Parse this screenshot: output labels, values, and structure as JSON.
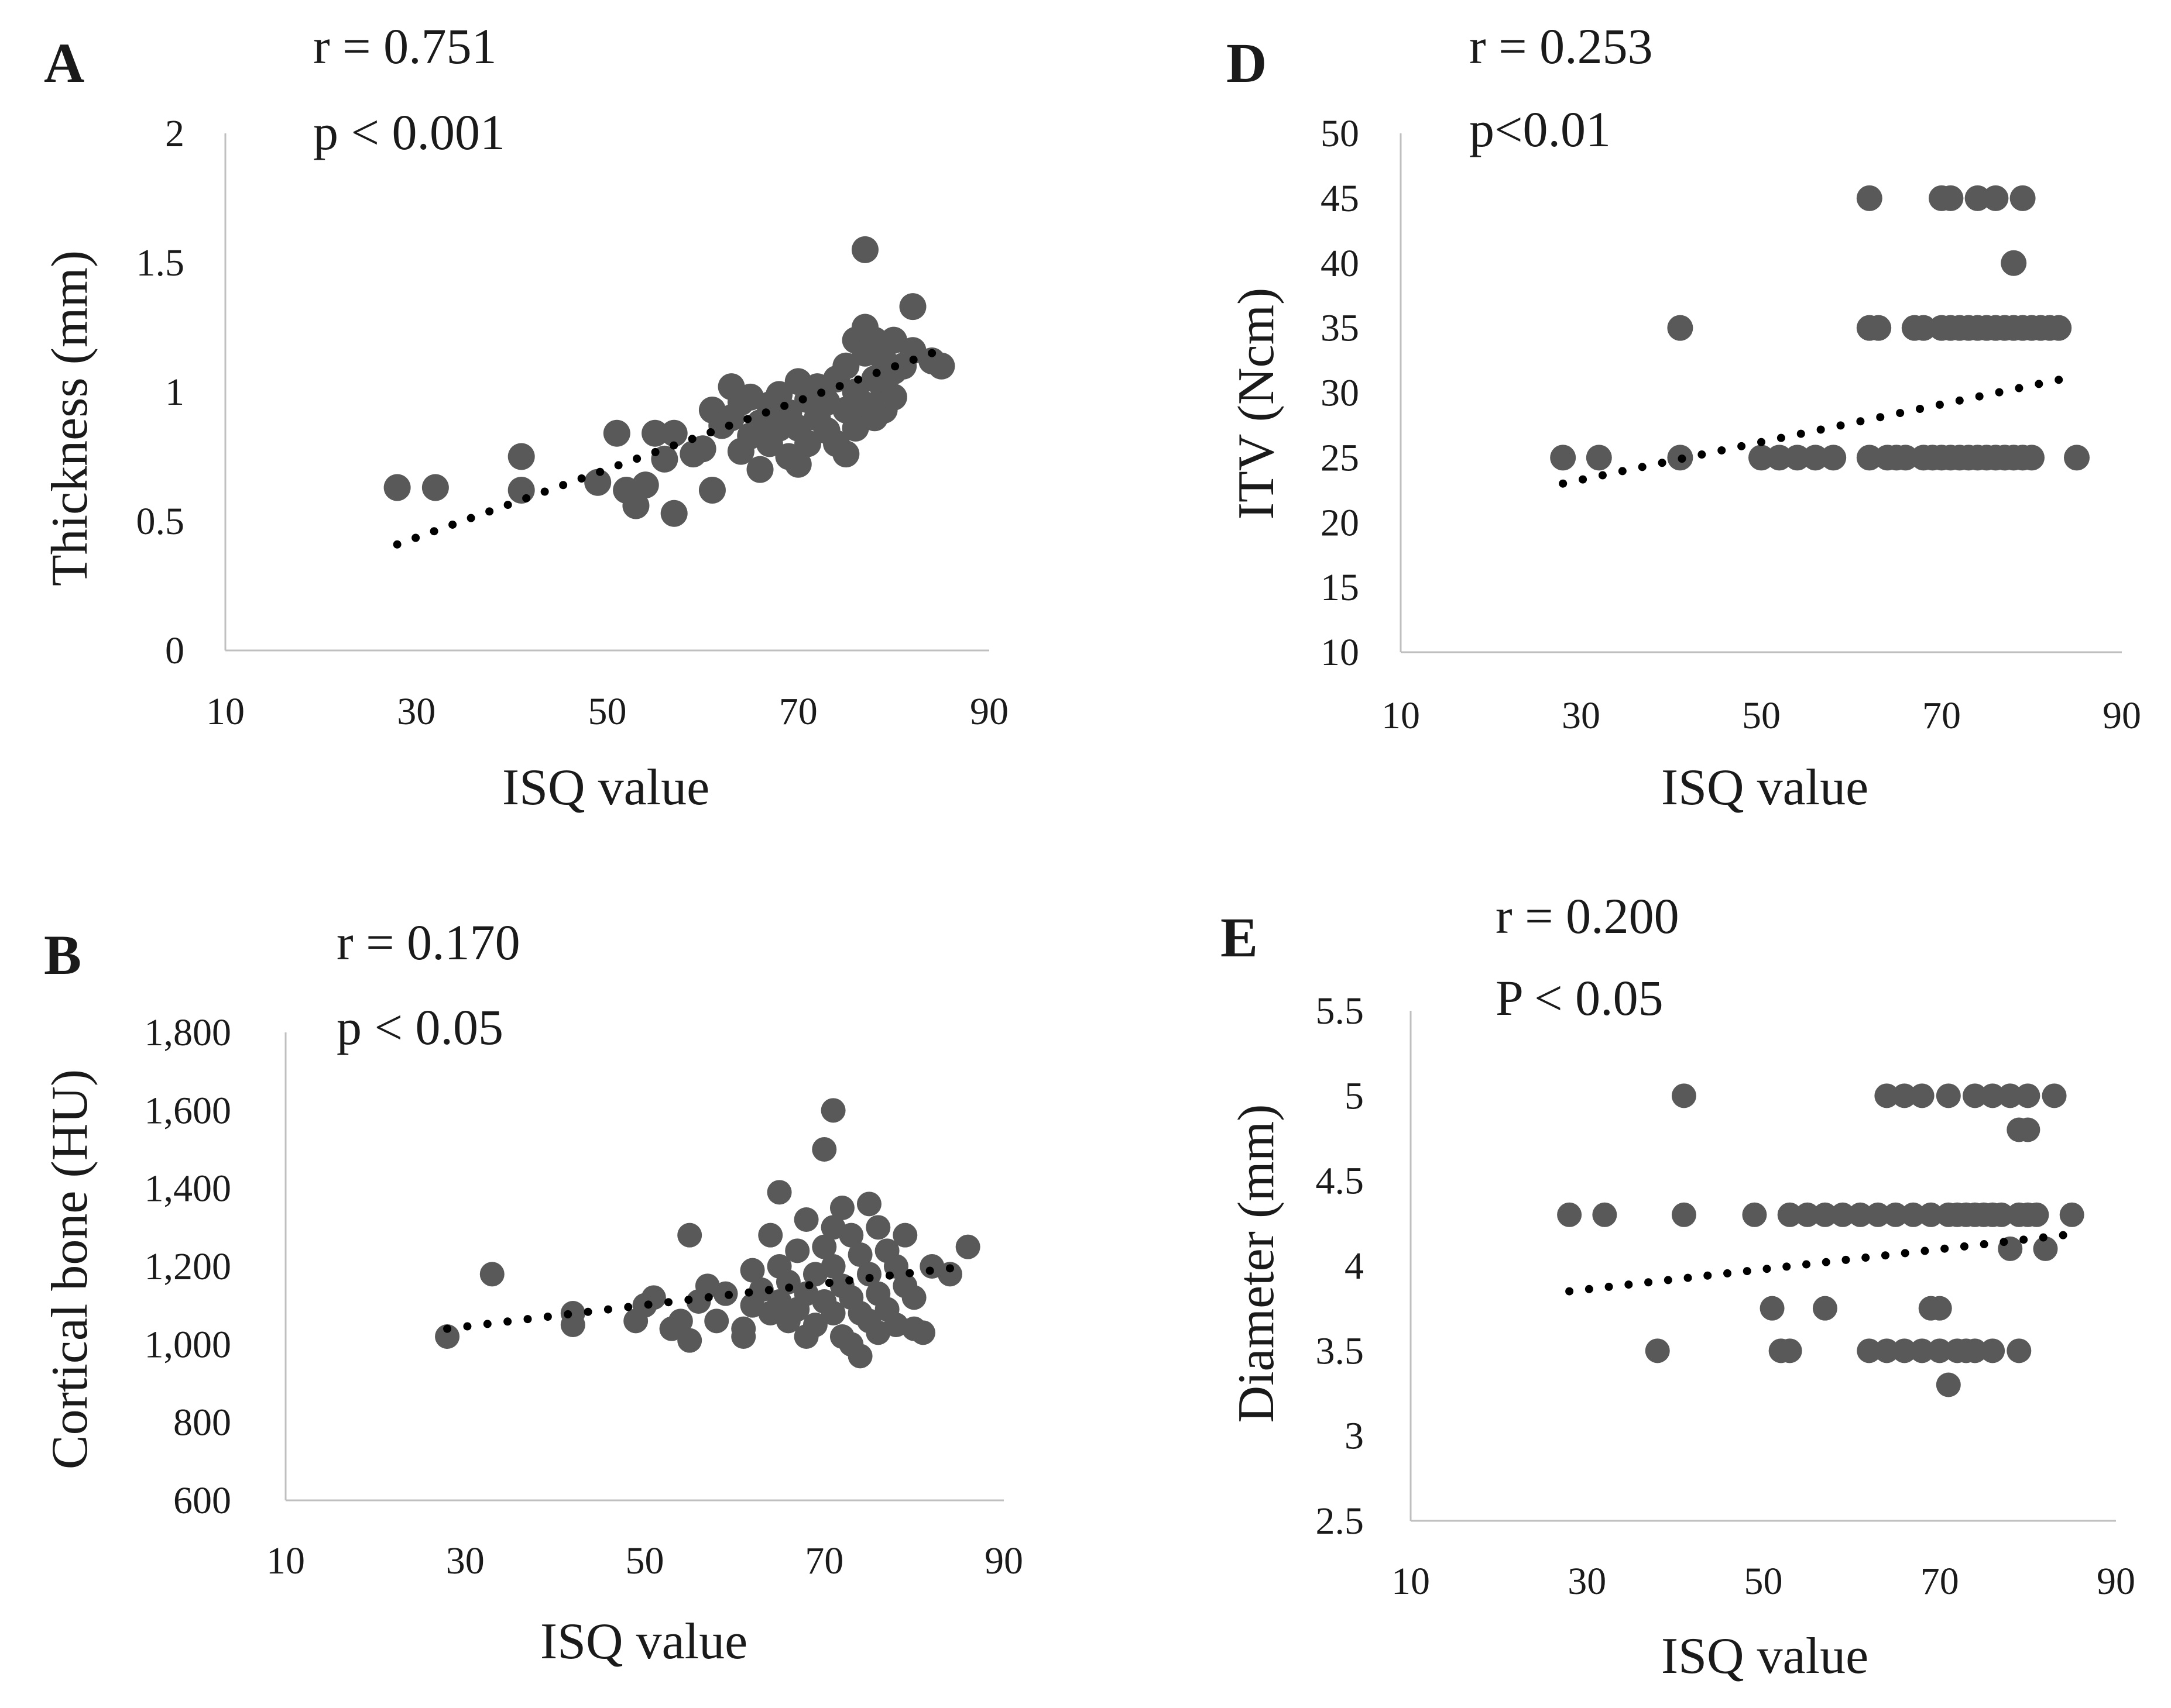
{
  "chart_data": [
    {
      "id": "A",
      "type": "scatter",
      "panel_label": "A",
      "stats": [
        "r = 0.751",
        "p < 0.001"
      ],
      "xlabel": "ISQ value",
      "ylabel": "Thickness (mm)",
      "xlim": [
        10,
        90
      ],
      "ylim": [
        0,
        2
      ],
      "x_ticks": [
        "10",
        "30",
        "50",
        "70",
        "90"
      ],
      "y_ticks": [
        "0",
        "0.5",
        "1",
        "1.5",
        "2"
      ],
      "trendline": {
        "x": [
          28,
          84
        ],
        "y": [
          0.41,
          1.15
        ]
      },
      "points": [
        [
          28,
          0.63
        ],
        [
          32,
          0.63
        ],
        [
          41,
          0.62
        ],
        [
          41,
          0.75
        ],
        [
          49,
          0.65
        ],
        [
          51,
          0.84
        ],
        [
          52,
          0.62
        ],
        [
          53,
          0.56
        ],
        [
          54,
          0.64
        ],
        [
          55,
          0.84
        ],
        [
          56,
          0.74
        ],
        [
          57,
          0.53
        ],
        [
          57,
          0.84
        ],
        [
          59,
          0.76
        ],
        [
          60,
          0.78
        ],
        [
          61,
          0.62
        ],
        [
          61,
          0.93
        ],
        [
          62,
          0.87
        ],
        [
          63,
          0.9
        ],
        [
          63,
          1.02
        ],
        [
          64,
          0.77
        ],
        [
          64,
          0.96
        ],
        [
          65,
          0.83
        ],
        [
          65,
          0.98
        ],
        [
          66,
          0.7
        ],
        [
          66,
          0.88
        ],
        [
          67,
          0.95
        ],
        [
          67,
          0.8
        ],
        [
          68,
          0.86
        ],
        [
          68,
          0.99
        ],
        [
          69,
          0.75
        ],
        [
          69,
          0.92
        ],
        [
          70,
          0.72
        ],
        [
          70,
          1.04
        ],
        [
          70,
          0.86
        ],
        [
          71,
          0.97
        ],
        [
          71,
          0.8
        ],
        [
          72,
          0.9
        ],
        [
          72,
          1.02
        ],
        [
          73,
          0.85
        ],
        [
          73,
          0.96
        ],
        [
          74,
          1.05
        ],
        [
          74,
          0.8
        ],
        [
          75,
          0.93
        ],
        [
          75,
          1.1
        ],
        [
          75,
          0.76
        ],
        [
          76,
          1.2
        ],
        [
          76,
          1.0
        ],
        [
          76,
          0.86
        ],
        [
          77,
          1.55
        ],
        [
          77,
          1.15
        ],
        [
          77,
          1.25
        ],
        [
          77,
          0.95
        ],
        [
          78,
          1.05
        ],
        [
          78,
          1.2
        ],
        [
          78,
          0.9
        ],
        [
          79,
          1.12
        ],
        [
          79,
          1.0
        ],
        [
          79,
          0.93
        ],
        [
          80,
          1.2
        ],
        [
          80,
          1.08
        ],
        [
          80,
          0.98
        ],
        [
          81,
          1.1
        ],
        [
          82,
          1.33
        ],
        [
          82,
          1.16
        ],
        [
          84,
          1.12
        ],
        [
          85,
          1.1
        ]
      ]
    },
    {
      "id": "B",
      "type": "scatter",
      "panel_label": "B",
      "stats": [
        "r = 0.170",
        "p < 0.05"
      ],
      "xlabel": "ISQ value",
      "ylabel": "Cortical bone (HU)",
      "xlim": [
        10,
        90
      ],
      "ylim": [
        600,
        1800
      ],
      "x_ticks": [
        "10",
        "30",
        "50",
        "70",
        "90"
      ],
      "y_ticks": [
        "600",
        "800",
        "1,000",
        "1,200",
        "1,400",
        "1,600",
        "1,800"
      ],
      "trendline": {
        "x": [
          28,
          84
        ],
        "y": [
          1040,
          1195
        ]
      },
      "points": [
        [
          28,
          1020
        ],
        [
          33,
          1180
        ],
        [
          42,
          1050
        ],
        [
          42,
          1080
        ],
        [
          49,
          1060
        ],
        [
          50,
          1100
        ],
        [
          51,
          1120
        ],
        [
          53,
          1040
        ],
        [
          54,
          1060
        ],
        [
          55,
          1010
        ],
        [
          55,
          1280
        ],
        [
          56,
          1110
        ],
        [
          57,
          1150
        ],
        [
          58,
          1060
        ],
        [
          59,
          1130
        ],
        [
          61,
          1020
        ],
        [
          61,
          1040
        ],
        [
          62,
          1100
        ],
        [
          62,
          1190
        ],
        [
          63,
          1140
        ],
        [
          64,
          1080
        ],
        [
          64,
          1280
        ],
        [
          65,
          1110
        ],
        [
          65,
          1200
        ],
        [
          65,
          1390
        ],
        [
          66,
          1160
        ],
        [
          66,
          1060
        ],
        [
          67,
          1090
        ],
        [
          67,
          1240
        ],
        [
          68,
          1130
        ],
        [
          68,
          1320
        ],
        [
          68,
          1020
        ],
        [
          69,
          1180
        ],
        [
          69,
          1050
        ],
        [
          70,
          1500
        ],
        [
          70,
          1250
        ],
        [
          70,
          1110
        ],
        [
          71,
          1600
        ],
        [
          71,
          1300
        ],
        [
          71,
          1080
        ],
        [
          71,
          1200
        ],
        [
          72,
          1350
        ],
        [
          72,
          1020
        ],
        [
          72,
          1150
        ],
        [
          73,
          1280
        ],
        [
          73,
          1120
        ],
        [
          73,
          1000
        ],
        [
          74,
          970
        ],
        [
          74,
          1230
        ],
        [
          74,
          1080
        ],
        [
          75,
          1360
        ],
        [
          75,
          1180
        ],
        [
          75,
          1060
        ],
        [
          76,
          1300
        ],
        [
          76,
          1130
        ],
        [
          76,
          1030
        ],
        [
          77,
          1240
        ],
        [
          77,
          1090
        ],
        [
          78,
          1200
        ],
        [
          78,
          1050
        ],
        [
          79,
          1280
        ],
        [
          79,
          1150
        ],
        [
          80,
          1120
        ],
        [
          80,
          1040
        ],
        [
          81,
          1030
        ],
        [
          82,
          1200
        ],
        [
          84,
          1180
        ],
        [
          86,
          1250
        ]
      ]
    },
    {
      "id": "D",
      "type": "scatter",
      "panel_label": "D",
      "stats": [
        "r = 0.253",
        "p<0.01"
      ],
      "xlabel": "ISQ value",
      "ylabel": "ITV (Ncm)",
      "xlim": [
        10,
        90
      ],
      "ylim": [
        10,
        50
      ],
      "x_ticks": [
        "10",
        "30",
        "50",
        "70",
        "90"
      ],
      "y_ticks": [
        "10",
        "15",
        "20",
        "25",
        "30",
        "35",
        "40",
        "45",
        "50"
      ],
      "trendline": {
        "x": [
          28,
          83
        ],
        "y": [
          23.0,
          31.0
        ]
      },
      "points": [
        [
          28,
          25
        ],
        [
          32,
          25
        ],
        [
          41,
          25
        ],
        [
          41,
          35
        ],
        [
          50,
          25
        ],
        [
          52,
          25
        ],
        [
          54,
          25
        ],
        [
          56,
          25
        ],
        [
          58,
          25
        ],
        [
          62,
          25
        ],
        [
          62,
          35
        ],
        [
          62,
          45
        ],
        [
          63,
          35
        ],
        [
          64,
          25
        ],
        [
          65,
          25
        ],
        [
          66,
          25
        ],
        [
          67,
          35
        ],
        [
          68,
          25
        ],
        [
          68,
          35
        ],
        [
          69,
          25
        ],
        [
          70,
          25
        ],
        [
          70,
          35
        ],
        [
          70,
          45
        ],
        [
          71,
          25
        ],
        [
          71,
          35
        ],
        [
          71,
          45
        ],
        [
          72,
          25
        ],
        [
          72,
          35
        ],
        [
          73,
          25
        ],
        [
          73,
          35
        ],
        [
          74,
          25
        ],
        [
          74,
          35
        ],
        [
          74,
          45
        ],
        [
          75,
          25
        ],
        [
          75,
          35
        ],
        [
          76,
          25
        ],
        [
          76,
          35
        ],
        [
          76,
          45
        ],
        [
          77,
          25
        ],
        [
          77,
          35
        ],
        [
          78,
          25
        ],
        [
          78,
          35
        ],
        [
          78,
          40
        ],
        [
          79,
          25
        ],
        [
          79,
          35
        ],
        [
          79,
          45
        ],
        [
          80,
          25
        ],
        [
          80,
          35
        ],
        [
          81,
          35
        ],
        [
          82,
          35
        ],
        [
          83,
          35
        ],
        [
          85,
          25
        ]
      ]
    },
    {
      "id": "E",
      "type": "scatter",
      "panel_label": "E",
      "stats": [
        "r = 0.200",
        "P < 0.05"
      ],
      "xlabel": "ISQ value",
      "ylabel": "Diameter (mm)",
      "xlim": [
        10,
        90
      ],
      "ylim": [
        2.5,
        5.5
      ],
      "x_ticks": [
        "10",
        "30",
        "50",
        "70",
        "90"
      ],
      "y_ticks": [
        "2.5",
        "3",
        "3.5",
        "4",
        "4.5",
        "5",
        "5.5"
      ],
      "trendline": {
        "x": [
          28,
          84
        ],
        "y": [
          3.85,
          4.18
        ]
      },
      "points": [
        [
          28,
          4.3
        ],
        [
          32,
          4.3
        ],
        [
          38,
          3.5
        ],
        [
          41,
          4.3
        ],
        [
          41,
          5.0
        ],
        [
          49,
          4.3
        ],
        [
          51,
          3.75
        ],
        [
          52,
          3.5
        ],
        [
          53,
          4.3
        ],
        [
          53,
          3.5
        ],
        [
          55,
          4.3
        ],
        [
          57,
          3.75
        ],
        [
          57,
          4.3
        ],
        [
          59,
          4.3
        ],
        [
          61,
          4.3
        ],
        [
          62,
          3.5
        ],
        [
          63,
          4.3
        ],
        [
          64,
          5.0
        ],
        [
          64,
          3.5
        ],
        [
          65,
          4.3
        ],
        [
          66,
          3.5
        ],
        [
          66,
          5.0
        ],
        [
          67,
          4.3
        ],
        [
          68,
          3.5
        ],
        [
          68,
          5.0
        ],
        [
          69,
          3.75
        ],
        [
          69,
          4.3
        ],
        [
          70,
          3.5
        ],
        [
          70,
          3.75
        ],
        [
          71,
          3.3
        ],
        [
          71,
          4.3
        ],
        [
          71,
          5.0
        ],
        [
          72,
          3.5
        ],
        [
          72,
          4.3
        ],
        [
          73,
          3.5
        ],
        [
          73,
          4.3
        ],
        [
          74,
          3.5
        ],
        [
          74,
          4.3
        ],
        [
          74,
          5.0
        ],
        [
          75,
          4.3
        ],
        [
          76,
          3.5
        ],
        [
          76,
          4.3
        ],
        [
          76,
          5.0
        ],
        [
          77,
          4.3
        ],
        [
          78,
          4.1
        ],
        [
          78,
          5.0
        ],
        [
          79,
          3.5
        ],
        [
          79,
          4.3
        ],
        [
          79,
          4.8
        ],
        [
          80,
          4.3
        ],
        [
          80,
          4.8
        ],
        [
          80,
          5.0
        ],
        [
          81,
          4.3
        ],
        [
          82,
          4.1
        ],
        [
          83,
          5.0
        ],
        [
          85,
          4.3
        ]
      ]
    }
  ]
}
